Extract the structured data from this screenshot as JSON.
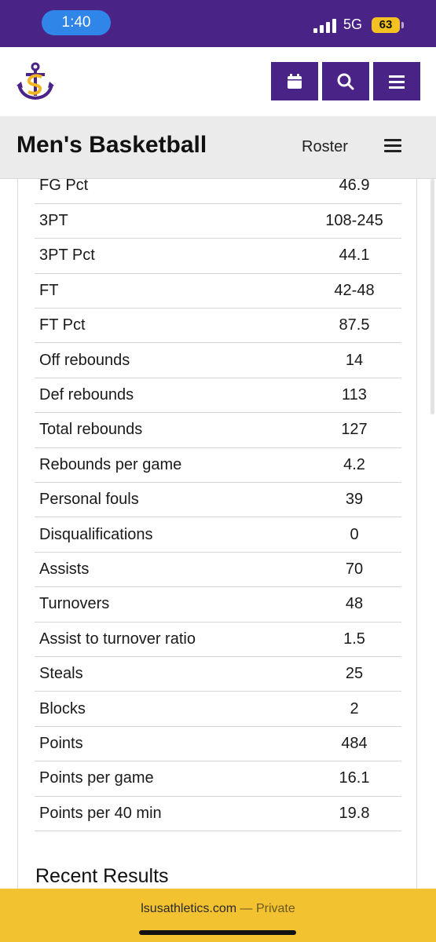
{
  "status_bar": {
    "time": "1:40",
    "network": "5G",
    "battery": "63"
  },
  "header": {
    "logo_icon": "anchor-sl-logo",
    "buttons": [
      {
        "icon": "calendar-icon"
      },
      {
        "icon": "search-icon"
      },
      {
        "icon": "menu-icon"
      }
    ],
    "brand_color": "#4a2386"
  },
  "sub_header": {
    "title": "Men's Basketball",
    "roster_label": "Roster",
    "menu_icon": "menu-icon"
  },
  "stats": {
    "rows": [
      {
        "label": "FG Pct",
        "value": "46.9"
      },
      {
        "label": "3PT",
        "value": "108-245"
      },
      {
        "label": "3PT Pct",
        "value": "44.1"
      },
      {
        "label": "FT",
        "value": "42-48"
      },
      {
        "label": "FT Pct",
        "value": "87.5"
      },
      {
        "label": "Off rebounds",
        "value": "14"
      },
      {
        "label": "Def rebounds",
        "value": "113"
      },
      {
        "label": "Total rebounds",
        "value": "127"
      },
      {
        "label": "Rebounds per game",
        "value": "4.2"
      },
      {
        "label": "Personal fouls",
        "value": "39"
      },
      {
        "label": "Disqualifications",
        "value": "0"
      },
      {
        "label": "Assists",
        "value": "70"
      },
      {
        "label": "Turnovers",
        "value": "48"
      },
      {
        "label": "Assist to turnover ratio",
        "value": "1.5"
      },
      {
        "label": "Steals",
        "value": "25"
      },
      {
        "label": "Blocks",
        "value": "2"
      },
      {
        "label": "Points",
        "value": "484"
      },
      {
        "label": "Points per game",
        "value": "16.1"
      },
      {
        "label": "Points per 40 min",
        "value": "19.8"
      }
    ]
  },
  "recent_results": {
    "heading": "Recent Results"
  },
  "browser": {
    "domain": "lsusathletics.com",
    "separator": "—",
    "mode": "Private",
    "bar_color": "#f2c230"
  }
}
